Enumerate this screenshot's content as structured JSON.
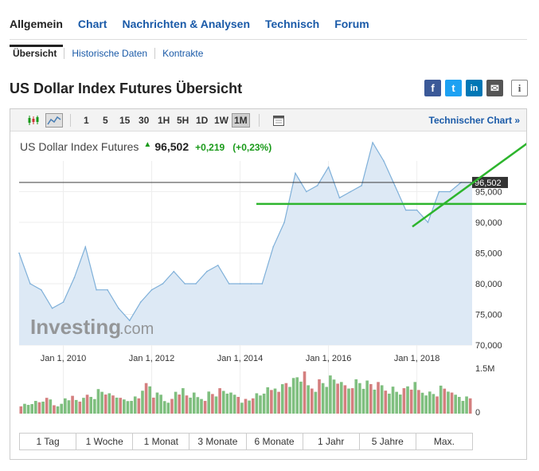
{
  "nav": {
    "tabs": [
      "Allgemein",
      "Chart",
      "Nachrichten & Analysen",
      "Technisch",
      "Forum"
    ],
    "subtabs": [
      "Übersicht",
      "Historische Daten",
      "Kontrakte"
    ]
  },
  "page_title": "US Dollar Index Futures Übersicht",
  "social": {
    "facebook": "f",
    "twitter": "t",
    "linkedin": "in",
    "mail": "✉",
    "info": "i"
  },
  "toolbar": {
    "intervals": [
      "1",
      "5",
      "15",
      "30",
      "1H",
      "5H",
      "1D",
      "1W",
      "1M"
    ],
    "active_interval": "1M",
    "technical_link": "Technischer Chart »"
  },
  "quote": {
    "name": "US Dollar Index Futures",
    "price": "96,502",
    "change": "+0,219",
    "change_pct": "(+0,23%)",
    "direction": "up"
  },
  "ranges": [
    "1 Tag",
    "1 Woche",
    "1 Monat",
    "3 Monate",
    "6 Monate",
    "1 Jahr",
    "5 Jahre",
    "Max."
  ],
  "watermark": {
    "brand": "Investing",
    "suffix": ".com"
  },
  "colors": {
    "accent": "#1a5aa8",
    "up": "#1a9a1a",
    "area_fill": "#dde9f5",
    "area_line": "#7fb0d9",
    "volume_up": "#7fbf7f",
    "volume_down": "#d47f7f",
    "trendline": "#2db52d"
  },
  "chart_data": {
    "type": "area",
    "x": [
      "2009-01",
      "2009-03",
      "2009-06",
      "2009-09",
      "2009-12",
      "2010-03",
      "2010-06",
      "2010-09",
      "2010-12",
      "2011-03",
      "2011-06",
      "2011-09",
      "2011-12",
      "2012-03",
      "2012-06",
      "2012-09",
      "2012-12",
      "2013-03",
      "2013-06",
      "2013-09",
      "2013-12",
      "2014-03",
      "2014-06",
      "2014-09",
      "2014-12",
      "2015-03",
      "2015-06",
      "2015-09",
      "2015-12",
      "2016-03",
      "2016-06",
      "2016-09",
      "2016-12",
      "2017-03",
      "2017-06",
      "2017-09",
      "2017-12",
      "2018-03",
      "2018-06",
      "2018-09",
      "2018-12",
      "2019-01"
    ],
    "values": [
      85,
      80,
      79,
      76,
      77,
      81,
      86,
      79,
      79,
      76,
      74,
      77,
      79,
      80,
      82,
      80,
      80,
      82,
      83,
      80,
      80,
      80,
      80,
      86,
      90,
      98,
      95,
      96,
      99,
      94,
      95,
      96,
      103,
      100,
      96,
      92,
      92,
      90,
      95,
      95,
      96.5,
      96.5
    ],
    "ylim": [
      70,
      100
    ],
    "y_ticks": [
      "70,000",
      "75,000",
      "80,000",
      "85,000",
      "90,000",
      "95,000"
    ],
    "x_tick_labels": [
      "Jan 1, 2010",
      "Jan 1, 2012",
      "Jan 1, 2014",
      "Jan 1, 2016",
      "Jan 1, 2018"
    ],
    "last_price_label": "96,502",
    "volume_axis": {
      "top": "1.5M",
      "bottom": "0"
    },
    "volume": [
      0.2,
      0.25,
      0.3,
      0.2,
      0.35,
      0.3,
      0.4,
      0.5,
      0.4,
      0.3,
      0.35,
      0.6,
      0.4,
      0.3,
      0.5,
      0.4,
      0.35,
      0.45,
      0.5,
      0.4,
      0.3,
      0.4,
      0.5,
      0.6,
      0.7,
      0.8,
      0.6,
      0.7,
      0.75,
      0.6,
      0.7,
      0.65,
      0.6,
      0.55,
      0.5,
      0.6,
      0.5,
      0.45,
      0.55,
      0.4,
      0.35,
      0.3
    ]
  }
}
